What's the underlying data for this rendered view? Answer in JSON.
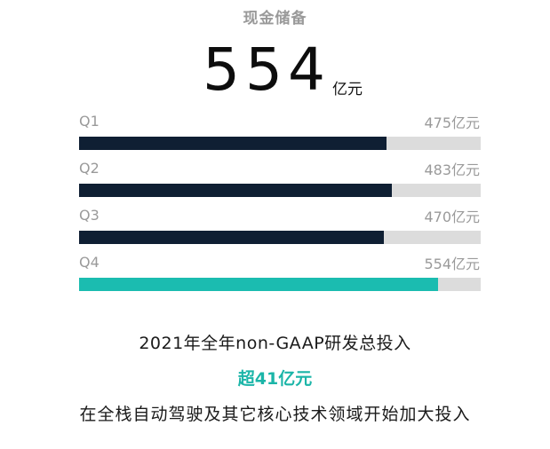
{
  "header": {
    "title": "现金储备",
    "total_value": "554",
    "total_unit": "亿元"
  },
  "chart_data": {
    "type": "bar",
    "orientation": "horizontal",
    "title": "现金储备",
    "categories": [
      "Q1",
      "Q2",
      "Q3",
      "Q4"
    ],
    "values": [
      475,
      483,
      470,
      554
    ],
    "value_labels": [
      "475亿元",
      "483亿元",
      "470亿元",
      "554亿元"
    ],
    "unit": "亿元",
    "xlim": [
      0,
      620
    ],
    "grid": false,
    "colors": {
      "default_bar": "#0f1f33",
      "highlight_bar": "#1bbcb0",
      "track": "#dcdcdc"
    },
    "highlight_index": 3
  },
  "footer": {
    "line1": "2021年全年non-GAAP研发总投入",
    "line2": "超41亿元",
    "line3": "在全栈自动驾驶及其它核心技术领域开始加大投入"
  }
}
